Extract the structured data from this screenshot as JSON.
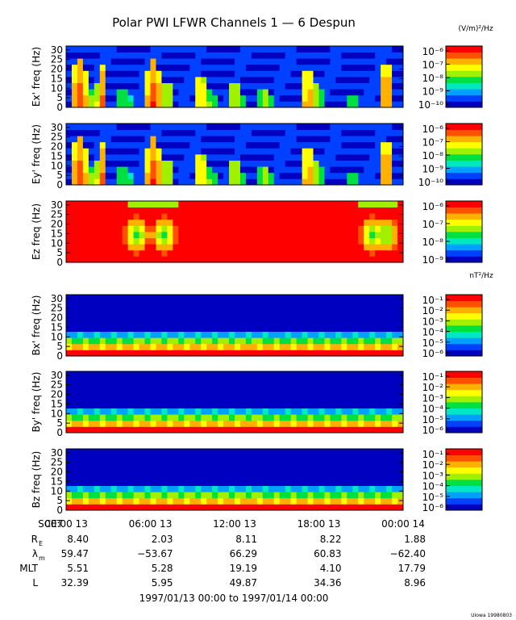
{
  "title": "Polar PWI LFWR Channels 1 — 6 Despun",
  "footer_tag": "UIowa 19980803",
  "chart_data": {
    "type": "heatmap",
    "title": "Polar PWI LFWR Channels 1 — 6 Despun",
    "x_ticks": [
      "00:00 13",
      "06:00 13",
      "12:00 13",
      "18:00 13",
      "00:00 14"
    ],
    "x_label": "SCET",
    "time_range": "1997/01/13 00:00 to 1997/01/14 00:00",
    "colorbar_units": {
      "electric": "(V/m)²/Hz",
      "magnetic": "nT²/Hz"
    },
    "colormap": [
      "#0000c0",
      "#0040ff",
      "#00a0ff",
      "#00e8c0",
      "#00e040",
      "#a0f000",
      "#ffff00",
      "#ffb000",
      "#ff5000",
      "#ff0000"
    ],
    "panels": [
      {
        "ylabel": "Ex' freq (Hz)",
        "yticks": [
          "0",
          "5",
          "10",
          "15",
          "20",
          "25",
          "30"
        ],
        "ylim": [
          0,
          32
        ],
        "cbar_ticks": [
          "10⁻⁶",
          "10⁻⁷",
          "10⁻⁸",
          "10⁻⁹",
          "10⁻¹⁰"
        ]
      },
      {
        "ylabel": "Ey' freq (Hz)",
        "yticks": [
          "0",
          "5",
          "10",
          "15",
          "20",
          "25",
          "30"
        ],
        "ylim": [
          0,
          32
        ],
        "cbar_ticks": [
          "10⁻⁶",
          "10⁻⁷",
          "10⁻⁸",
          "10⁻⁹",
          "10⁻¹⁰"
        ]
      },
      {
        "ylabel": "Ez freq (Hz)",
        "yticks": [
          "0",
          "5",
          "10",
          "15",
          "20",
          "25",
          "30"
        ],
        "ylim": [
          0,
          32
        ],
        "cbar_ticks": [
          "10⁻⁶",
          "10⁻⁷",
          "10⁻⁸",
          "10⁻⁹"
        ]
      },
      {
        "ylabel": "Bx' freq (Hz)",
        "yticks": [
          "0",
          "5",
          "10",
          "15",
          "20",
          "25",
          "30"
        ],
        "ylim": [
          0,
          32
        ],
        "cbar_ticks": [
          "10⁻¹",
          "10⁻²",
          "10⁻³",
          "10⁻⁴",
          "10⁻⁵",
          "10⁻⁶"
        ]
      },
      {
        "ylabel": "By' freq (Hz)",
        "yticks": [
          "0",
          "5",
          "10",
          "15",
          "20",
          "25",
          "30"
        ],
        "ylim": [
          0,
          32
        ],
        "cbar_ticks": [
          "10⁻¹",
          "10⁻²",
          "10⁻³",
          "10⁻⁴",
          "10⁻⁵",
          "10⁻⁶"
        ]
      },
      {
        "ylabel": "Bz freq (Hz)",
        "yticks": [
          "0",
          "5",
          "10",
          "15",
          "20",
          "25",
          "30"
        ],
        "ylim": [
          0,
          32
        ],
        "cbar_ticks": [
          "10⁻¹",
          "10⁻²",
          "10⁻³",
          "10⁻⁴",
          "10⁻⁵",
          "10⁻⁶"
        ]
      }
    ],
    "ephemeris": [
      {
        "label": "R",
        "sub": "E",
        "values": [
          "8.40",
          "2.03",
          "8.11",
          "8.22",
          "1.88"
        ]
      },
      {
        "label": "λ",
        "sub": "m",
        "values": [
          "59.47",
          "−53.67",
          "66.29",
          "60.83",
          "−62.40"
        ]
      },
      {
        "label": "MLT",
        "sub": "",
        "values": [
          "5.51",
          "5.28",
          "19.19",
          "4.10",
          "17.79"
        ]
      },
      {
        "label": "L",
        "sub": "",
        "values": [
          "32.39",
          "5.95",
          "49.87",
          "34.36",
          "8.96"
        ]
      }
    ]
  }
}
